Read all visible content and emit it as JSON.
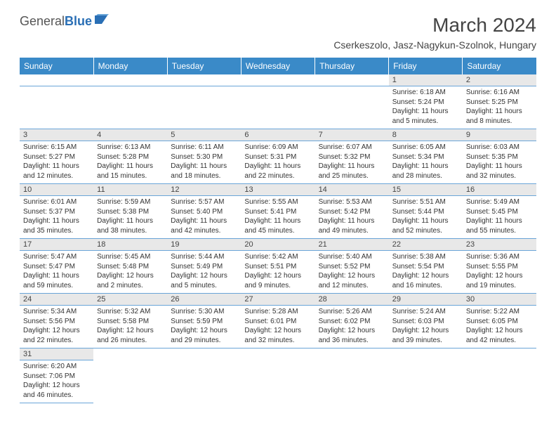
{
  "logo": {
    "part1": "General",
    "part2": "Blue"
  },
  "title": "March 2024",
  "location": "Cserkeszolo, Jasz-Nagykun-Szolnok, Hungary",
  "colors": {
    "header_bg": "#3a8ac8",
    "daynum_bg": "#e8e8e8",
    "row_border": "#6aa5d8",
    "logo_blue": "#2a6fb5"
  },
  "day_headers": [
    "Sunday",
    "Monday",
    "Tuesday",
    "Wednesday",
    "Thursday",
    "Friday",
    "Saturday"
  ],
  "weeks": [
    [
      null,
      null,
      null,
      null,
      null,
      {
        "n": "1",
        "sr": "Sunrise: 6:18 AM",
        "ss": "Sunset: 5:24 PM",
        "d1": "Daylight: 11 hours",
        "d2": "and 5 minutes."
      },
      {
        "n": "2",
        "sr": "Sunrise: 6:16 AM",
        "ss": "Sunset: 5:25 PM",
        "d1": "Daylight: 11 hours",
        "d2": "and 8 minutes."
      }
    ],
    [
      {
        "n": "3",
        "sr": "Sunrise: 6:15 AM",
        "ss": "Sunset: 5:27 PM",
        "d1": "Daylight: 11 hours",
        "d2": "and 12 minutes."
      },
      {
        "n": "4",
        "sr": "Sunrise: 6:13 AM",
        "ss": "Sunset: 5:28 PM",
        "d1": "Daylight: 11 hours",
        "d2": "and 15 minutes."
      },
      {
        "n": "5",
        "sr": "Sunrise: 6:11 AM",
        "ss": "Sunset: 5:30 PM",
        "d1": "Daylight: 11 hours",
        "d2": "and 18 minutes."
      },
      {
        "n": "6",
        "sr": "Sunrise: 6:09 AM",
        "ss": "Sunset: 5:31 PM",
        "d1": "Daylight: 11 hours",
        "d2": "and 22 minutes."
      },
      {
        "n": "7",
        "sr": "Sunrise: 6:07 AM",
        "ss": "Sunset: 5:32 PM",
        "d1": "Daylight: 11 hours",
        "d2": "and 25 minutes."
      },
      {
        "n": "8",
        "sr": "Sunrise: 6:05 AM",
        "ss": "Sunset: 5:34 PM",
        "d1": "Daylight: 11 hours",
        "d2": "and 28 minutes."
      },
      {
        "n": "9",
        "sr": "Sunrise: 6:03 AM",
        "ss": "Sunset: 5:35 PM",
        "d1": "Daylight: 11 hours",
        "d2": "and 32 minutes."
      }
    ],
    [
      {
        "n": "10",
        "sr": "Sunrise: 6:01 AM",
        "ss": "Sunset: 5:37 PM",
        "d1": "Daylight: 11 hours",
        "d2": "and 35 minutes."
      },
      {
        "n": "11",
        "sr": "Sunrise: 5:59 AM",
        "ss": "Sunset: 5:38 PM",
        "d1": "Daylight: 11 hours",
        "d2": "and 38 minutes."
      },
      {
        "n": "12",
        "sr": "Sunrise: 5:57 AM",
        "ss": "Sunset: 5:40 PM",
        "d1": "Daylight: 11 hours",
        "d2": "and 42 minutes."
      },
      {
        "n": "13",
        "sr": "Sunrise: 5:55 AM",
        "ss": "Sunset: 5:41 PM",
        "d1": "Daylight: 11 hours",
        "d2": "and 45 minutes."
      },
      {
        "n": "14",
        "sr": "Sunrise: 5:53 AM",
        "ss": "Sunset: 5:42 PM",
        "d1": "Daylight: 11 hours",
        "d2": "and 49 minutes."
      },
      {
        "n": "15",
        "sr": "Sunrise: 5:51 AM",
        "ss": "Sunset: 5:44 PM",
        "d1": "Daylight: 11 hours",
        "d2": "and 52 minutes."
      },
      {
        "n": "16",
        "sr": "Sunrise: 5:49 AM",
        "ss": "Sunset: 5:45 PM",
        "d1": "Daylight: 11 hours",
        "d2": "and 55 minutes."
      }
    ],
    [
      {
        "n": "17",
        "sr": "Sunrise: 5:47 AM",
        "ss": "Sunset: 5:47 PM",
        "d1": "Daylight: 11 hours",
        "d2": "and 59 minutes."
      },
      {
        "n": "18",
        "sr": "Sunrise: 5:45 AM",
        "ss": "Sunset: 5:48 PM",
        "d1": "Daylight: 12 hours",
        "d2": "and 2 minutes."
      },
      {
        "n": "19",
        "sr": "Sunrise: 5:44 AM",
        "ss": "Sunset: 5:49 PM",
        "d1": "Daylight: 12 hours",
        "d2": "and 5 minutes."
      },
      {
        "n": "20",
        "sr": "Sunrise: 5:42 AM",
        "ss": "Sunset: 5:51 PM",
        "d1": "Daylight: 12 hours",
        "d2": "and 9 minutes."
      },
      {
        "n": "21",
        "sr": "Sunrise: 5:40 AM",
        "ss": "Sunset: 5:52 PM",
        "d1": "Daylight: 12 hours",
        "d2": "and 12 minutes."
      },
      {
        "n": "22",
        "sr": "Sunrise: 5:38 AM",
        "ss": "Sunset: 5:54 PM",
        "d1": "Daylight: 12 hours",
        "d2": "and 16 minutes."
      },
      {
        "n": "23",
        "sr": "Sunrise: 5:36 AM",
        "ss": "Sunset: 5:55 PM",
        "d1": "Daylight: 12 hours",
        "d2": "and 19 minutes."
      }
    ],
    [
      {
        "n": "24",
        "sr": "Sunrise: 5:34 AM",
        "ss": "Sunset: 5:56 PM",
        "d1": "Daylight: 12 hours",
        "d2": "and 22 minutes."
      },
      {
        "n": "25",
        "sr": "Sunrise: 5:32 AM",
        "ss": "Sunset: 5:58 PM",
        "d1": "Daylight: 12 hours",
        "d2": "and 26 minutes."
      },
      {
        "n": "26",
        "sr": "Sunrise: 5:30 AM",
        "ss": "Sunset: 5:59 PM",
        "d1": "Daylight: 12 hours",
        "d2": "and 29 minutes."
      },
      {
        "n": "27",
        "sr": "Sunrise: 5:28 AM",
        "ss": "Sunset: 6:01 PM",
        "d1": "Daylight: 12 hours",
        "d2": "and 32 minutes."
      },
      {
        "n": "28",
        "sr": "Sunrise: 5:26 AM",
        "ss": "Sunset: 6:02 PM",
        "d1": "Daylight: 12 hours",
        "d2": "and 36 minutes."
      },
      {
        "n": "29",
        "sr": "Sunrise: 5:24 AM",
        "ss": "Sunset: 6:03 PM",
        "d1": "Daylight: 12 hours",
        "d2": "and 39 minutes."
      },
      {
        "n": "30",
        "sr": "Sunrise: 5:22 AM",
        "ss": "Sunset: 6:05 PM",
        "d1": "Daylight: 12 hours",
        "d2": "and 42 minutes."
      }
    ],
    [
      {
        "n": "31",
        "sr": "Sunrise: 6:20 AM",
        "ss": "Sunset: 7:06 PM",
        "d1": "Daylight: 12 hours",
        "d2": "and 46 minutes."
      },
      null,
      null,
      null,
      null,
      null,
      null
    ]
  ]
}
